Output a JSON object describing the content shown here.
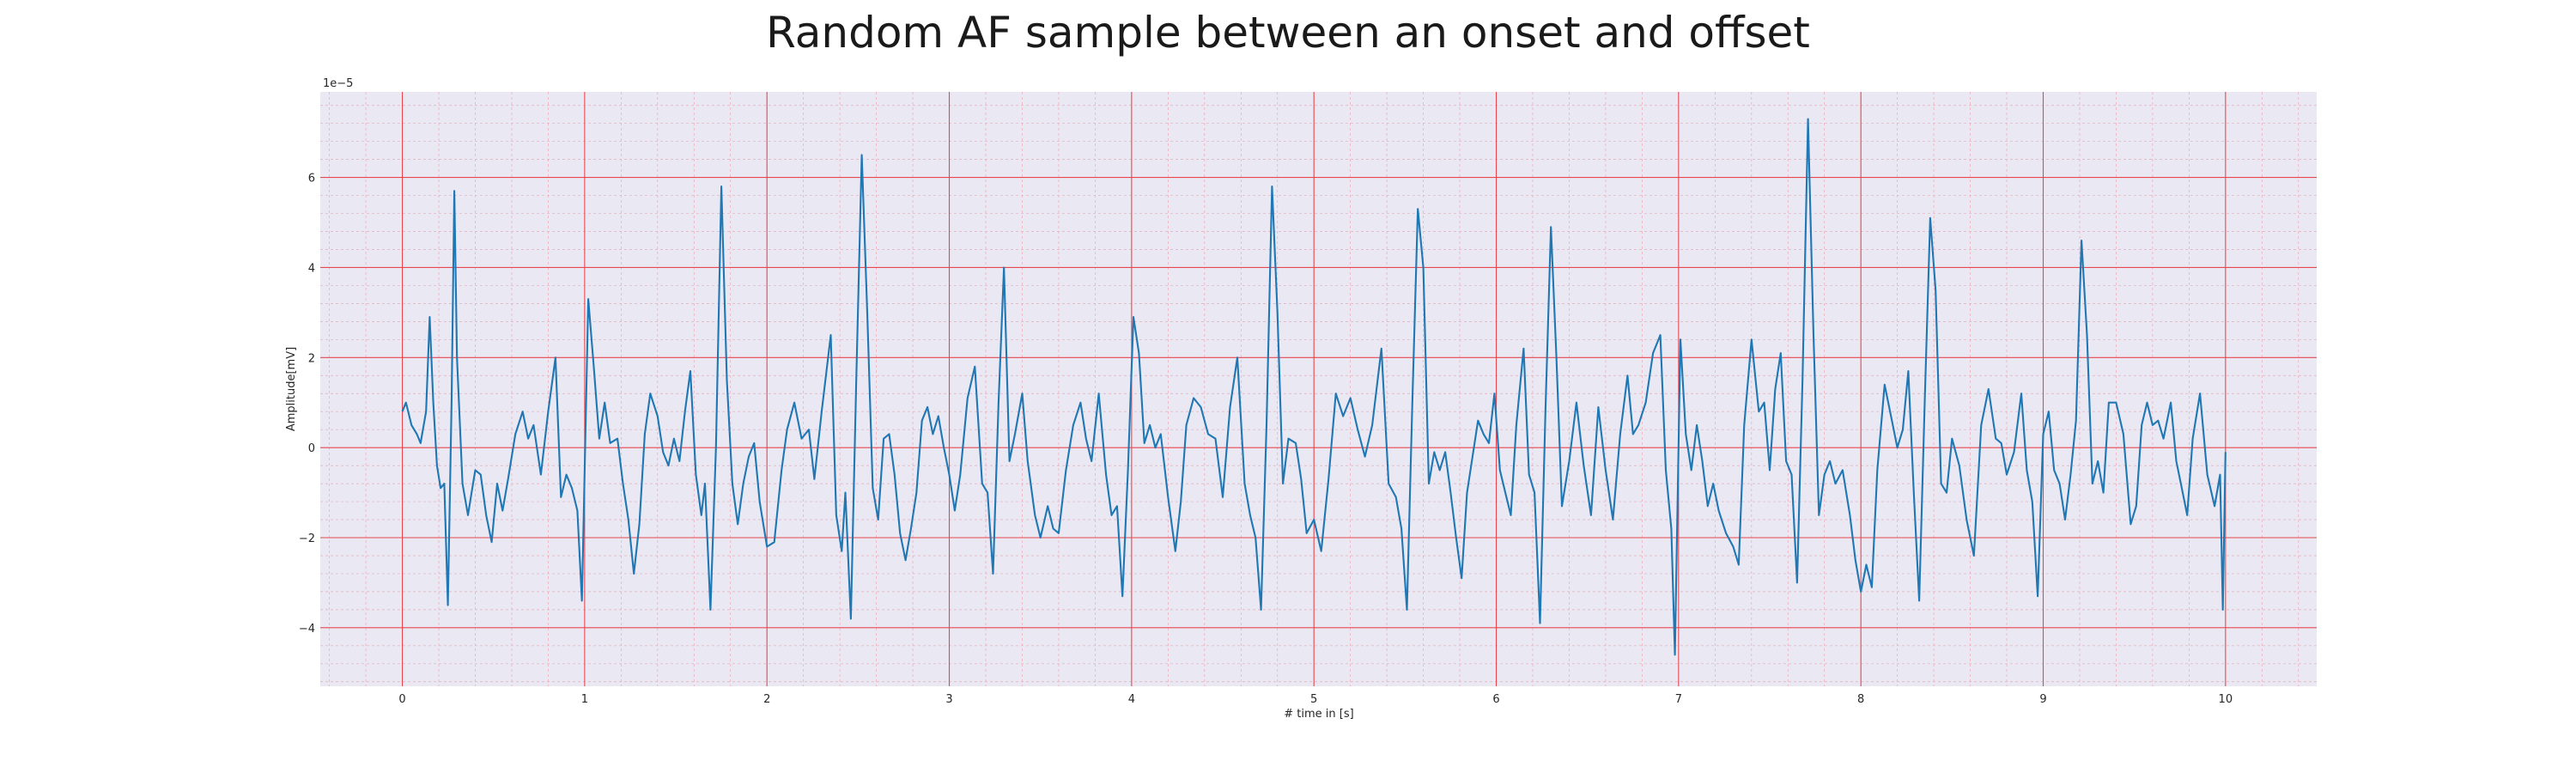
{
  "chart_data": {
    "type": "line",
    "title": "Random AF sample between an onset and offset",
    "xlabel": "# time in [s]",
    "ylabel": "Amplitude[mV]",
    "y_offset_label": "1e−5",
    "xlim": [
      -0.45,
      10.5
    ],
    "ylim": [
      -5.3,
      7.9
    ],
    "xticks": [
      0,
      1,
      2,
      3,
      4,
      5,
      6,
      7,
      8,
      9,
      10
    ],
    "yticks": [
      -4,
      -2,
      0,
      2,
      4,
      6
    ],
    "grid": true,
    "minor_grid": true,
    "series": [
      {
        "color": "#1f77b4",
        "points": [
          [
            0.0,
            0.8
          ],
          [
            0.02,
            1.0
          ],
          [
            0.05,
            0.5
          ],
          [
            0.08,
            0.3
          ],
          [
            0.1,
            0.1
          ],
          [
            0.13,
            0.8
          ],
          [
            0.15,
            2.9
          ],
          [
            0.17,
            1.0
          ],
          [
            0.19,
            -0.4
          ],
          [
            0.21,
            -0.9
          ],
          [
            0.23,
            -0.8
          ],
          [
            0.25,
            -3.5
          ],
          [
            0.27,
            1.0
          ],
          [
            0.285,
            5.7
          ],
          [
            0.3,
            2.0
          ],
          [
            0.33,
            -0.8
          ],
          [
            0.36,
            -1.5
          ],
          [
            0.38,
            -1.0
          ],
          [
            0.4,
            -0.5
          ],
          [
            0.43,
            -0.6
          ],
          [
            0.46,
            -1.5
          ],
          [
            0.49,
            -2.1
          ],
          [
            0.52,
            -0.8
          ],
          [
            0.55,
            -1.4
          ],
          [
            0.58,
            -0.7
          ],
          [
            0.62,
            0.3
          ],
          [
            0.66,
            0.8
          ],
          [
            0.69,
            0.2
          ],
          [
            0.72,
            0.5
          ],
          [
            0.76,
            -0.6
          ],
          [
            0.8,
            0.8
          ],
          [
            0.84,
            2.0
          ],
          [
            0.87,
            -1.1
          ],
          [
            0.9,
            -0.6
          ],
          [
            0.93,
            -0.9
          ],
          [
            0.96,
            -1.4
          ],
          [
            0.985,
            -3.4
          ],
          [
            1.0,
            -0.5
          ],
          [
            1.02,
            3.3
          ],
          [
            1.05,
            1.8
          ],
          [
            1.08,
            0.2
          ],
          [
            1.11,
            1.0
          ],
          [
            1.14,
            0.1
          ],
          [
            1.18,
            0.2
          ],
          [
            1.21,
            -0.8
          ],
          [
            1.24,
            -1.6
          ],
          [
            1.27,
            -2.8
          ],
          [
            1.3,
            -1.7
          ],
          [
            1.33,
            0.3
          ],
          [
            1.36,
            1.2
          ],
          [
            1.4,
            0.7
          ],
          [
            1.43,
            -0.1
          ],
          [
            1.46,
            -0.4
          ],
          [
            1.49,
            0.2
          ],
          [
            1.52,
            -0.3
          ],
          [
            1.55,
            0.8
          ],
          [
            1.58,
            1.7
          ],
          [
            1.61,
            -0.6
          ],
          [
            1.64,
            -1.5
          ],
          [
            1.66,
            -0.8
          ],
          [
            1.69,
            -3.6
          ],
          [
            1.72,
            0.0
          ],
          [
            1.75,
            5.8
          ],
          [
            1.78,
            1.5
          ],
          [
            1.81,
            -0.8
          ],
          [
            1.84,
            -1.7
          ],
          [
            1.87,
            -0.8
          ],
          [
            1.9,
            -0.2
          ],
          [
            1.93,
            0.1
          ],
          [
            1.96,
            -1.2
          ],
          [
            2.0,
            -2.2
          ],
          [
            2.04,
            -2.1
          ],
          [
            2.08,
            -0.5
          ],
          [
            2.11,
            0.4
          ],
          [
            2.15,
            1.0
          ],
          [
            2.19,
            0.2
          ],
          [
            2.23,
            0.4
          ],
          [
            2.26,
            -0.7
          ],
          [
            2.3,
            0.8
          ],
          [
            2.35,
            2.5
          ],
          [
            2.38,
            -1.5
          ],
          [
            2.41,
            -2.3
          ],
          [
            2.43,
            -1.0
          ],
          [
            2.46,
            -3.8
          ],
          [
            2.49,
            1.5
          ],
          [
            2.52,
            6.5
          ],
          [
            2.55,
            3.0
          ],
          [
            2.58,
            -0.9
          ],
          [
            2.61,
            -1.6
          ],
          [
            2.64,
            0.2
          ],
          [
            2.67,
            0.3
          ],
          [
            2.7,
            -0.6
          ],
          [
            2.73,
            -1.9
          ],
          [
            2.76,
            -2.5
          ],
          [
            2.79,
            -1.8
          ],
          [
            2.82,
            -1.0
          ],
          [
            2.85,
            0.6
          ],
          [
            2.88,
            0.9
          ],
          [
            2.91,
            0.3
          ],
          [
            2.94,
            0.7
          ],
          [
            2.97,
            0.0
          ],
          [
            3.0,
            -0.6
          ],
          [
            3.03,
            -1.4
          ],
          [
            3.06,
            -0.6
          ],
          [
            3.1,
            1.1
          ],
          [
            3.14,
            1.8
          ],
          [
            3.18,
            -0.8
          ],
          [
            3.21,
            -1.0
          ],
          [
            3.24,
            -2.8
          ],
          [
            3.27,
            1.0
          ],
          [
            3.3,
            4.0
          ],
          [
            3.33,
            -0.3
          ],
          [
            3.36,
            0.3
          ],
          [
            3.4,
            1.2
          ],
          [
            3.43,
            -0.3
          ],
          [
            3.47,
            -1.5
          ],
          [
            3.5,
            -2.0
          ],
          [
            3.54,
            -1.3
          ],
          [
            3.57,
            -1.8
          ],
          [
            3.6,
            -1.9
          ],
          [
            3.64,
            -0.5
          ],
          [
            3.68,
            0.5
          ],
          [
            3.72,
            1.0
          ],
          [
            3.75,
            0.2
          ],
          [
            3.78,
            -0.3
          ],
          [
            3.82,
            1.2
          ],
          [
            3.86,
            -0.6
          ],
          [
            3.89,
            -1.5
          ],
          [
            3.92,
            -1.3
          ],
          [
            3.95,
            -3.3
          ],
          [
            3.98,
            -0.5
          ],
          [
            4.01,
            2.9
          ],
          [
            4.04,
            2.1
          ],
          [
            4.07,
            0.1
          ],
          [
            4.1,
            0.5
          ],
          [
            4.13,
            0.0
          ],
          [
            4.16,
            0.3
          ],
          [
            4.2,
            -1.1
          ],
          [
            4.24,
            -2.3
          ],
          [
            4.27,
            -1.2
          ],
          [
            4.3,
            0.5
          ],
          [
            4.34,
            1.1
          ],
          [
            4.38,
            0.9
          ],
          [
            4.42,
            0.3
          ],
          [
            4.46,
            0.2
          ],
          [
            4.5,
            -1.1
          ],
          [
            4.54,
            0.9
          ],
          [
            4.58,
            2.0
          ],
          [
            4.62,
            -0.8
          ],
          [
            4.65,
            -1.5
          ],
          [
            4.68,
            -2.0
          ],
          [
            4.71,
            -3.6
          ],
          [
            4.74,
            0.5
          ],
          [
            4.77,
            5.8
          ],
          [
            4.8,
            3.0
          ],
          [
            4.83,
            -0.8
          ],
          [
            4.86,
            0.2
          ],
          [
            4.9,
            0.1
          ],
          [
            4.93,
            -0.7
          ],
          [
            4.96,
            -1.9
          ],
          [
            5.0,
            -1.6
          ],
          [
            5.04,
            -2.3
          ],
          [
            5.08,
            -0.7
          ],
          [
            5.12,
            1.2
          ],
          [
            5.16,
            0.7
          ],
          [
            5.2,
            1.1
          ],
          [
            5.24,
            0.4
          ],
          [
            5.28,
            -0.2
          ],
          [
            5.32,
            0.5
          ],
          [
            5.37,
            2.2
          ],
          [
            5.41,
            -0.8
          ],
          [
            5.45,
            -1.1
          ],
          [
            5.48,
            -1.8
          ],
          [
            5.51,
            -3.6
          ],
          [
            5.54,
            1.0
          ],
          [
            5.57,
            5.3
          ],
          [
            5.6,
            4.0
          ],
          [
            5.63,
            -0.8
          ],
          [
            5.66,
            -0.1
          ],
          [
            5.69,
            -0.5
          ],
          [
            5.72,
            -0.1
          ],
          [
            5.75,
            -1.0
          ],
          [
            5.78,
            -2.0
          ],
          [
            5.81,
            -2.9
          ],
          [
            5.84,
            -1.0
          ],
          [
            5.87,
            -0.2
          ],
          [
            5.9,
            0.6
          ],
          [
            5.93,
            0.3
          ],
          [
            5.96,
            0.1
          ],
          [
            5.99,
            1.2
          ],
          [
            6.02,
            -0.5
          ],
          [
            6.05,
            -1.0
          ],
          [
            6.08,
            -1.5
          ],
          [
            6.11,
            0.5
          ],
          [
            6.15,
            2.2
          ],
          [
            6.18,
            -0.6
          ],
          [
            6.21,
            -1.0
          ],
          [
            6.24,
            -3.9
          ],
          [
            6.27,
            0.8
          ],
          [
            6.3,
            4.9
          ],
          [
            6.33,
            2.0
          ],
          [
            6.36,
            -1.3
          ],
          [
            6.4,
            -0.3
          ],
          [
            6.44,
            1.0
          ],
          [
            6.48,
            -0.4
          ],
          [
            6.52,
            -1.5
          ],
          [
            6.56,
            0.9
          ],
          [
            6.6,
            -0.5
          ],
          [
            6.64,
            -1.6
          ],
          [
            6.68,
            0.3
          ],
          [
            6.72,
            1.6
          ],
          [
            6.75,
            0.3
          ],
          [
            6.78,
            0.5
          ],
          [
            6.82,
            1.0
          ],
          [
            6.86,
            2.1
          ],
          [
            6.9,
            2.5
          ],
          [
            6.93,
            -0.5
          ],
          [
            6.96,
            -1.8
          ],
          [
            6.98,
            -4.6
          ],
          [
            7.01,
            2.4
          ],
          [
            7.04,
            0.3
          ],
          [
            7.07,
            -0.5
          ],
          [
            7.1,
            0.5
          ],
          [
            7.13,
            -0.3
          ],
          [
            7.16,
            -1.3
          ],
          [
            7.19,
            -0.8
          ],
          [
            7.22,
            -1.4
          ],
          [
            7.26,
            -1.9
          ],
          [
            7.3,
            -2.2
          ],
          [
            7.33,
            -2.6
          ],
          [
            7.36,
            0.5
          ],
          [
            7.4,
            2.4
          ],
          [
            7.44,
            0.8
          ],
          [
            7.47,
            1.0
          ],
          [
            7.5,
            -0.5
          ],
          [
            7.53,
            1.3
          ],
          [
            7.56,
            2.1
          ],
          [
            7.59,
            -0.3
          ],
          [
            7.62,
            -0.6
          ],
          [
            7.65,
            -3.0
          ],
          [
            7.68,
            1.5
          ],
          [
            7.71,
            7.3
          ],
          [
            7.74,
            2.5
          ],
          [
            7.77,
            -1.5
          ],
          [
            7.8,
            -0.6
          ],
          [
            7.83,
            -0.3
          ],
          [
            7.86,
            -0.8
          ],
          [
            7.9,
            -0.5
          ],
          [
            7.94,
            -1.5
          ],
          [
            7.97,
            -2.5
          ],
          [
            8.0,
            -3.2
          ],
          [
            8.03,
            -2.6
          ],
          [
            8.06,
            -3.1
          ],
          [
            8.09,
            -0.5
          ],
          [
            8.13,
            1.4
          ],
          [
            8.17,
            0.6
          ],
          [
            8.2,
            0.0
          ],
          [
            8.23,
            0.4
          ],
          [
            8.26,
            1.7
          ],
          [
            8.29,
            -1.0
          ],
          [
            8.32,
            -3.4
          ],
          [
            8.35,
            1.0
          ],
          [
            8.38,
            5.1
          ],
          [
            8.41,
            3.5
          ],
          [
            8.44,
            -0.8
          ],
          [
            8.47,
            -1.0
          ],
          [
            8.5,
            0.2
          ],
          [
            8.54,
            -0.4
          ],
          [
            8.58,
            -1.6
          ],
          [
            8.62,
            -2.4
          ],
          [
            8.66,
            0.5
          ],
          [
            8.7,
            1.3
          ],
          [
            8.74,
            0.2
          ],
          [
            8.77,
            0.1
          ],
          [
            8.8,
            -0.6
          ],
          [
            8.84,
            -0.1
          ],
          [
            8.88,
            1.2
          ],
          [
            8.91,
            -0.5
          ],
          [
            8.94,
            -1.2
          ],
          [
            8.97,
            -3.3
          ],
          [
            9.0,
            0.3
          ],
          [
            9.03,
            0.8
          ],
          [
            9.06,
            -0.5
          ],
          [
            9.09,
            -0.8
          ],
          [
            9.12,
            -1.6
          ],
          [
            9.15,
            -0.6
          ],
          [
            9.18,
            0.6
          ],
          [
            9.21,
            4.6
          ],
          [
            9.24,
            2.5
          ],
          [
            9.27,
            -0.8
          ],
          [
            9.3,
            -0.3
          ],
          [
            9.33,
            -1.0
          ],
          [
            9.36,
            1.0
          ],
          [
            9.4,
            1.0
          ],
          [
            9.44,
            0.3
          ],
          [
            9.48,
            -1.7
          ],
          [
            9.51,
            -1.3
          ],
          [
            9.54,
            0.5
          ],
          [
            9.57,
            1.0
          ],
          [
            9.6,
            0.5
          ],
          [
            9.63,
            0.6
          ],
          [
            9.66,
            0.2
          ],
          [
            9.7,
            1.0
          ],
          [
            9.73,
            -0.3
          ],
          [
            9.76,
            -0.9
          ],
          [
            9.79,
            -1.5
          ],
          [
            9.82,
            0.2
          ],
          [
            9.86,
            1.2
          ],
          [
            9.9,
            -0.6
          ],
          [
            9.94,
            -1.3
          ],
          [
            9.97,
            -0.6
          ],
          [
            9.985,
            -3.6
          ],
          [
            10.0,
            -0.1
          ]
        ]
      }
    ]
  }
}
